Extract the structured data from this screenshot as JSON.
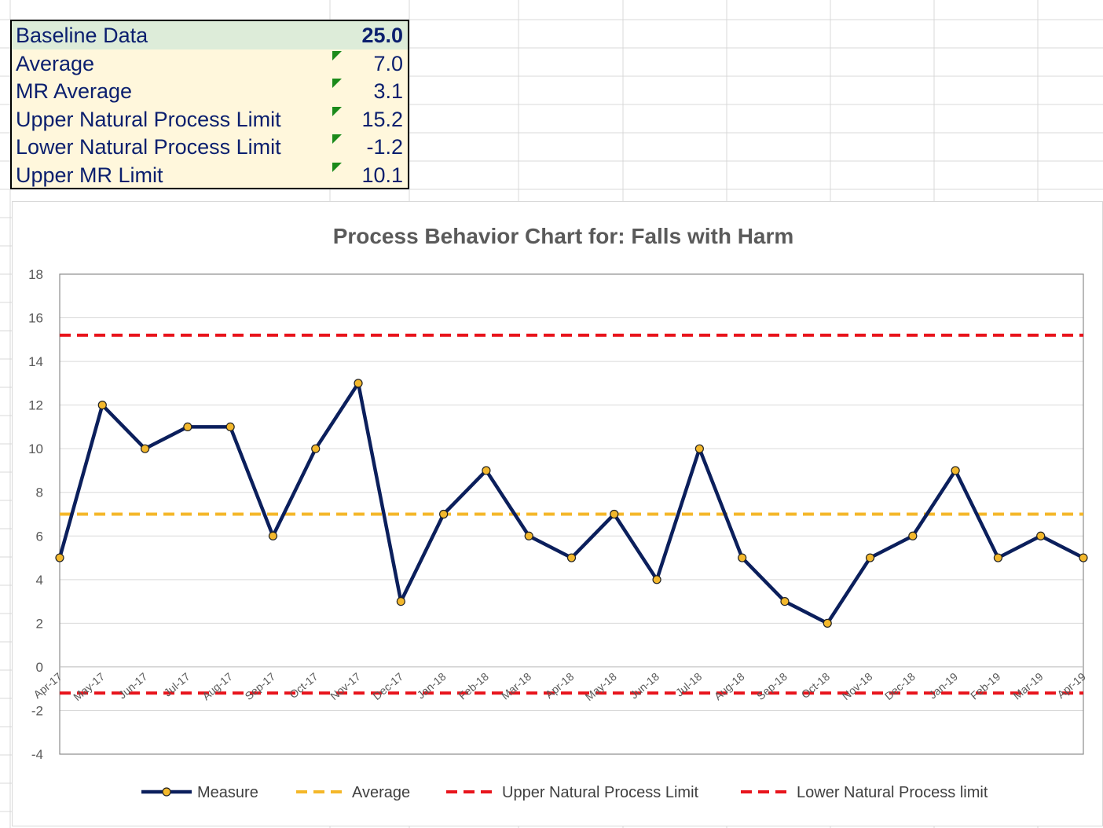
{
  "summary": {
    "rows": [
      {
        "label": "Baseline Data",
        "value": "25.0"
      },
      {
        "label": "Average",
        "value": "7.0"
      },
      {
        "label": "MR Average",
        "value": "3.1"
      },
      {
        "label": "Upper Natural Process Limit",
        "value": "15.2"
      },
      {
        "label": "Lower Natural Process Limit",
        "value": "-1.2"
      },
      {
        "label": "Upper MR Limit",
        "value": "10.1"
      }
    ]
  },
  "colors": {
    "measure": "#0b1f5c",
    "marker": "#f3b82c",
    "average": "#f4b729",
    "limits": "#e8141c",
    "text": "#0b1f6e"
  },
  "chart_data": {
    "type": "line",
    "title": "Process Behavior Chart for:  Falls with Harm",
    "categories": [
      "Apr-17",
      "May-17",
      "Jun-17",
      "Jul-17",
      "Aug-17",
      "Sep-17",
      "Oct-17",
      "Nov-17",
      "Dec-17",
      "Jan-18",
      "Feb-18",
      "Mar-18",
      "Apr-18",
      "May-18",
      "Jun-18",
      "Jul-18",
      "Aug-18",
      "Sep-18",
      "Oct-18",
      "Nov-18",
      "Dec-18",
      "Jan-19",
      "Feb-19",
      "Mar-19",
      "Apr-19"
    ],
    "series": [
      {
        "name": "Measure",
        "values": [
          5,
          12,
          10,
          11,
          11,
          6,
          10,
          13,
          3,
          7,
          9,
          6,
          5,
          7,
          4,
          10,
          5,
          3,
          2,
          5,
          6,
          9,
          5,
          6,
          5
        ]
      },
      {
        "name": "Average",
        "constant": 7.0
      },
      {
        "name": "Upper Natural Process Limit",
        "constant": 15.2
      },
      {
        "name": "Lower Natural Process limit",
        "constant": -1.2
      }
    ],
    "ylim": [
      -4,
      18
    ],
    "yticks": [
      -4,
      -2,
      0,
      2,
      4,
      6,
      8,
      10,
      12,
      14,
      16,
      18
    ],
    "grid": true,
    "legend": "bottom"
  }
}
